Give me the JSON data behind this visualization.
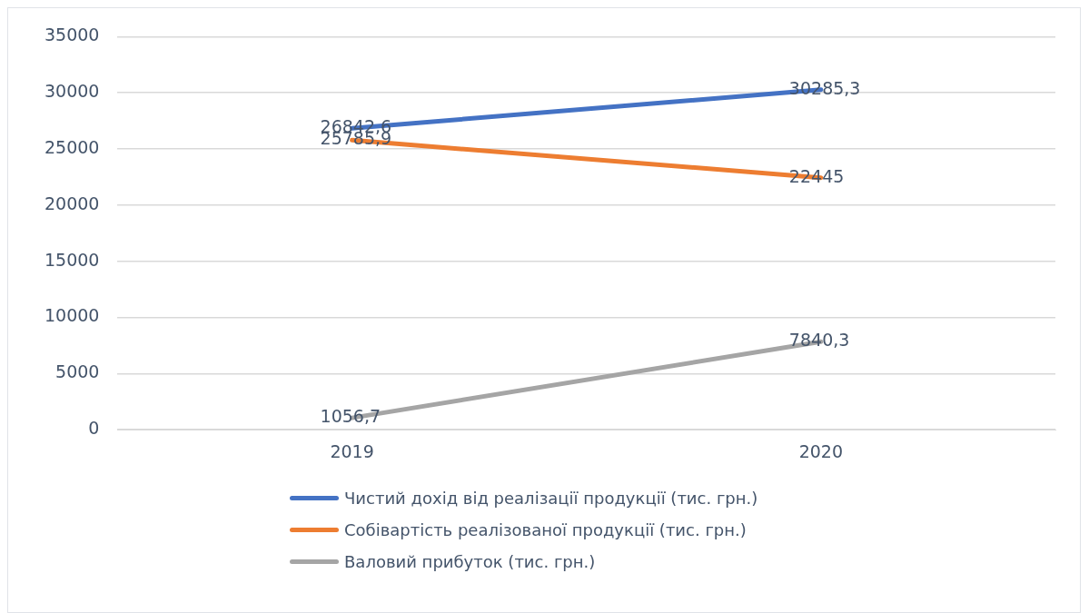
{
  "chart_data": {
    "type": "line",
    "categories": [
      "2019",
      "2020"
    ],
    "series": [
      {
        "name": "Чистий дохід від реалізації продукції (тис. грн.)",
        "color": "#4472c4",
        "values": [
          26842.6,
          30285.3
        ],
        "value_labels": [
          "26842,6",
          "30285,3"
        ]
      },
      {
        "name": "Собівартість реалізованої продукції (тис. грн.)",
        "color": "#ed7d31",
        "values": [
          25785.9,
          22445
        ],
        "value_labels": [
          "25785,9",
          "22445"
        ]
      },
      {
        "name": "Валовий прибуток (тис. грн.)",
        "color": "#a5a5a5",
        "values": [
          1056.7,
          7840.3
        ],
        "value_labels": [
          "1056,7",
          "7840,3"
        ]
      }
    ],
    "ylim": [
      0,
      35000
    ],
    "yticks": [
      0,
      5000,
      10000,
      15000,
      20000,
      25000,
      30000,
      35000
    ],
    "grid": "y",
    "legend": "bottom",
    "marker": "none",
    "line_style": "solid"
  }
}
